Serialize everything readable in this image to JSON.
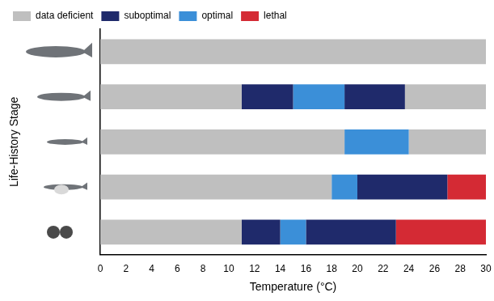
{
  "chart_data": {
    "type": "bar",
    "orientation": "horizontal",
    "stacked": true,
    "x_label": "Temperature (°C)",
    "y_label": "Life-History Stage",
    "categories": [
      null,
      null,
      null,
      null,
      null
    ],
    "series": [
      {
        "name": "data deficient",
        "color": "#bfbfbf",
        "values": [
          30,
          11,
          19,
          18,
          11
        ]
      },
      {
        "name": "suboptimal",
        "color": "#1f2a6b",
        "values": [
          0,
          4,
          0,
          0,
          3
        ]
      },
      {
        "name": "optimal",
        "color": "#3b8fd8",
        "values": [
          0,
          4,
          5,
          2,
          2
        ]
      },
      {
        "name": "suboptimal",
        "color": "#1f2a6b",
        "values": [
          0,
          4.7,
          0,
          7,
          7
        ]
      },
      {
        "name": "data deficient",
        "color": "#bfbfbf",
        "values": [
          0,
          6.3,
          6,
          0,
          0
        ]
      },
      {
        "name": "lethal",
        "color": "#d42a34",
        "values": [
          0,
          0,
          0,
          3,
          7
        ]
      }
    ],
    "xlim": [
      0,
      30
    ],
    "xticks": [
      0,
      2,
      4,
      6,
      8,
      10,
      12,
      14,
      16,
      18,
      20,
      22,
      24,
      26,
      28,
      30
    ],
    "grid": false,
    "legend": "top"
  }
}
